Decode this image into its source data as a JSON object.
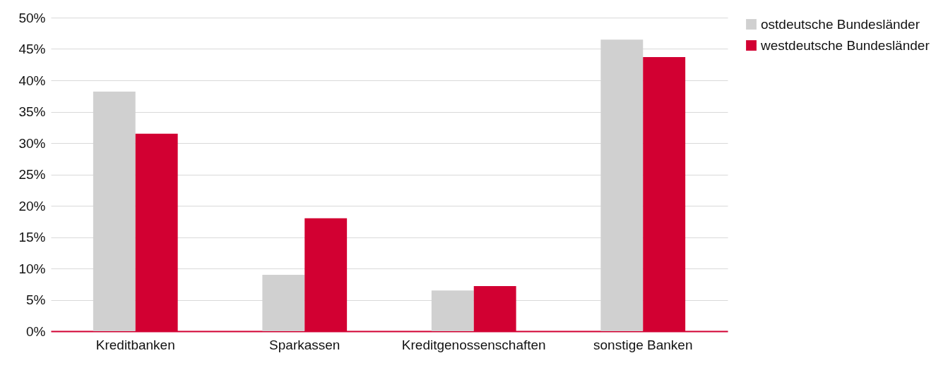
{
  "chart_data": {
    "type": "bar",
    "categories": [
      "Kreditbanken",
      "Sparkassen",
      "Kreditgenossenschaften",
      "sonstige Banken"
    ],
    "series": [
      {
        "name": "ostdeutsche Bundesländer",
        "color": "#d0d0d0",
        "values": [
          38.2,
          9.0,
          6.5,
          46.5
        ]
      },
      {
        "name": "westdeutsche Bundesländer",
        "color": "#d20032",
        "values": [
          31.5,
          18.0,
          7.2,
          43.7
        ]
      }
    ],
    "ylim": [
      0,
      50
    ],
    "yticks": [
      {
        "value": 0,
        "label": "0%"
      },
      {
        "value": 5,
        "label": "5%"
      },
      {
        "value": 10,
        "label": "10%"
      },
      {
        "value": 15,
        "label": "15%"
      },
      {
        "value": 20,
        "label": "20%"
      },
      {
        "value": 25,
        "label": "25%"
      },
      {
        "value": 30,
        "label": "30%"
      },
      {
        "value": 35,
        "label": "35%"
      },
      {
        "value": 40,
        "label": "40%"
      },
      {
        "value": 45,
        "label": "45%"
      },
      {
        "value": 50,
        "label": "50%"
      }
    ],
    "grid": "y",
    "legend": "right"
  }
}
